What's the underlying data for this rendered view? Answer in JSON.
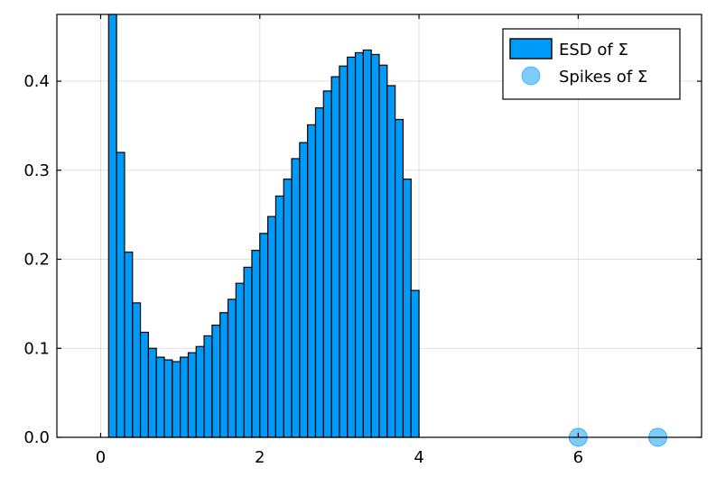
{
  "chart_data": {
    "type": "bar",
    "bin_width": 0.1,
    "bin_start": 0.1,
    "values": [
      0.475,
      0.32,
      0.208,
      0.151,
      0.118,
      0.1,
      0.09,
      0.087,
      0.085,
      0.09,
      0.095,
      0.102,
      0.114,
      0.126,
      0.14,
      0.155,
      0.173,
      0.191,
      0.21,
      0.229,
      0.248,
      0.271,
      0.29,
      0.313,
      0.331,
      0.351,
      0.37,
      0.389,
      0.405,
      0.417,
      0.427,
      0.432,
      0.435,
      0.43,
      0.418,
      0.395,
      0.357,
      0.29,
      0.165
    ],
    "spikes": {
      "x": [
        6,
        7
      ],
      "y": [
        0,
        0
      ]
    },
    "xlim": [
      -0.55,
      7.55
    ],
    "ylim": [
      0,
      0.475
    ],
    "xticks": [
      0,
      2,
      4,
      6
    ],
    "yticks": [
      0.0,
      0.1,
      0.2,
      0.3,
      0.4
    ],
    "xtick_labels": [
      "0",
      "2",
      "4",
      "6"
    ],
    "ytick_labels": [
      "0.0",
      "0.1",
      "0.2",
      "0.3",
      "0.4"
    ],
    "grid": true,
    "legend": {
      "placement": "top-right",
      "entries": [
        {
          "label": "ESD of Σ",
          "kind": "bar"
        },
        {
          "label": "Spikes of Σ",
          "kind": "marker"
        }
      ]
    },
    "colors": {
      "bar_fill": "#009af9",
      "bar_edge": "#000000",
      "spike_fill": "#009af9"
    }
  }
}
